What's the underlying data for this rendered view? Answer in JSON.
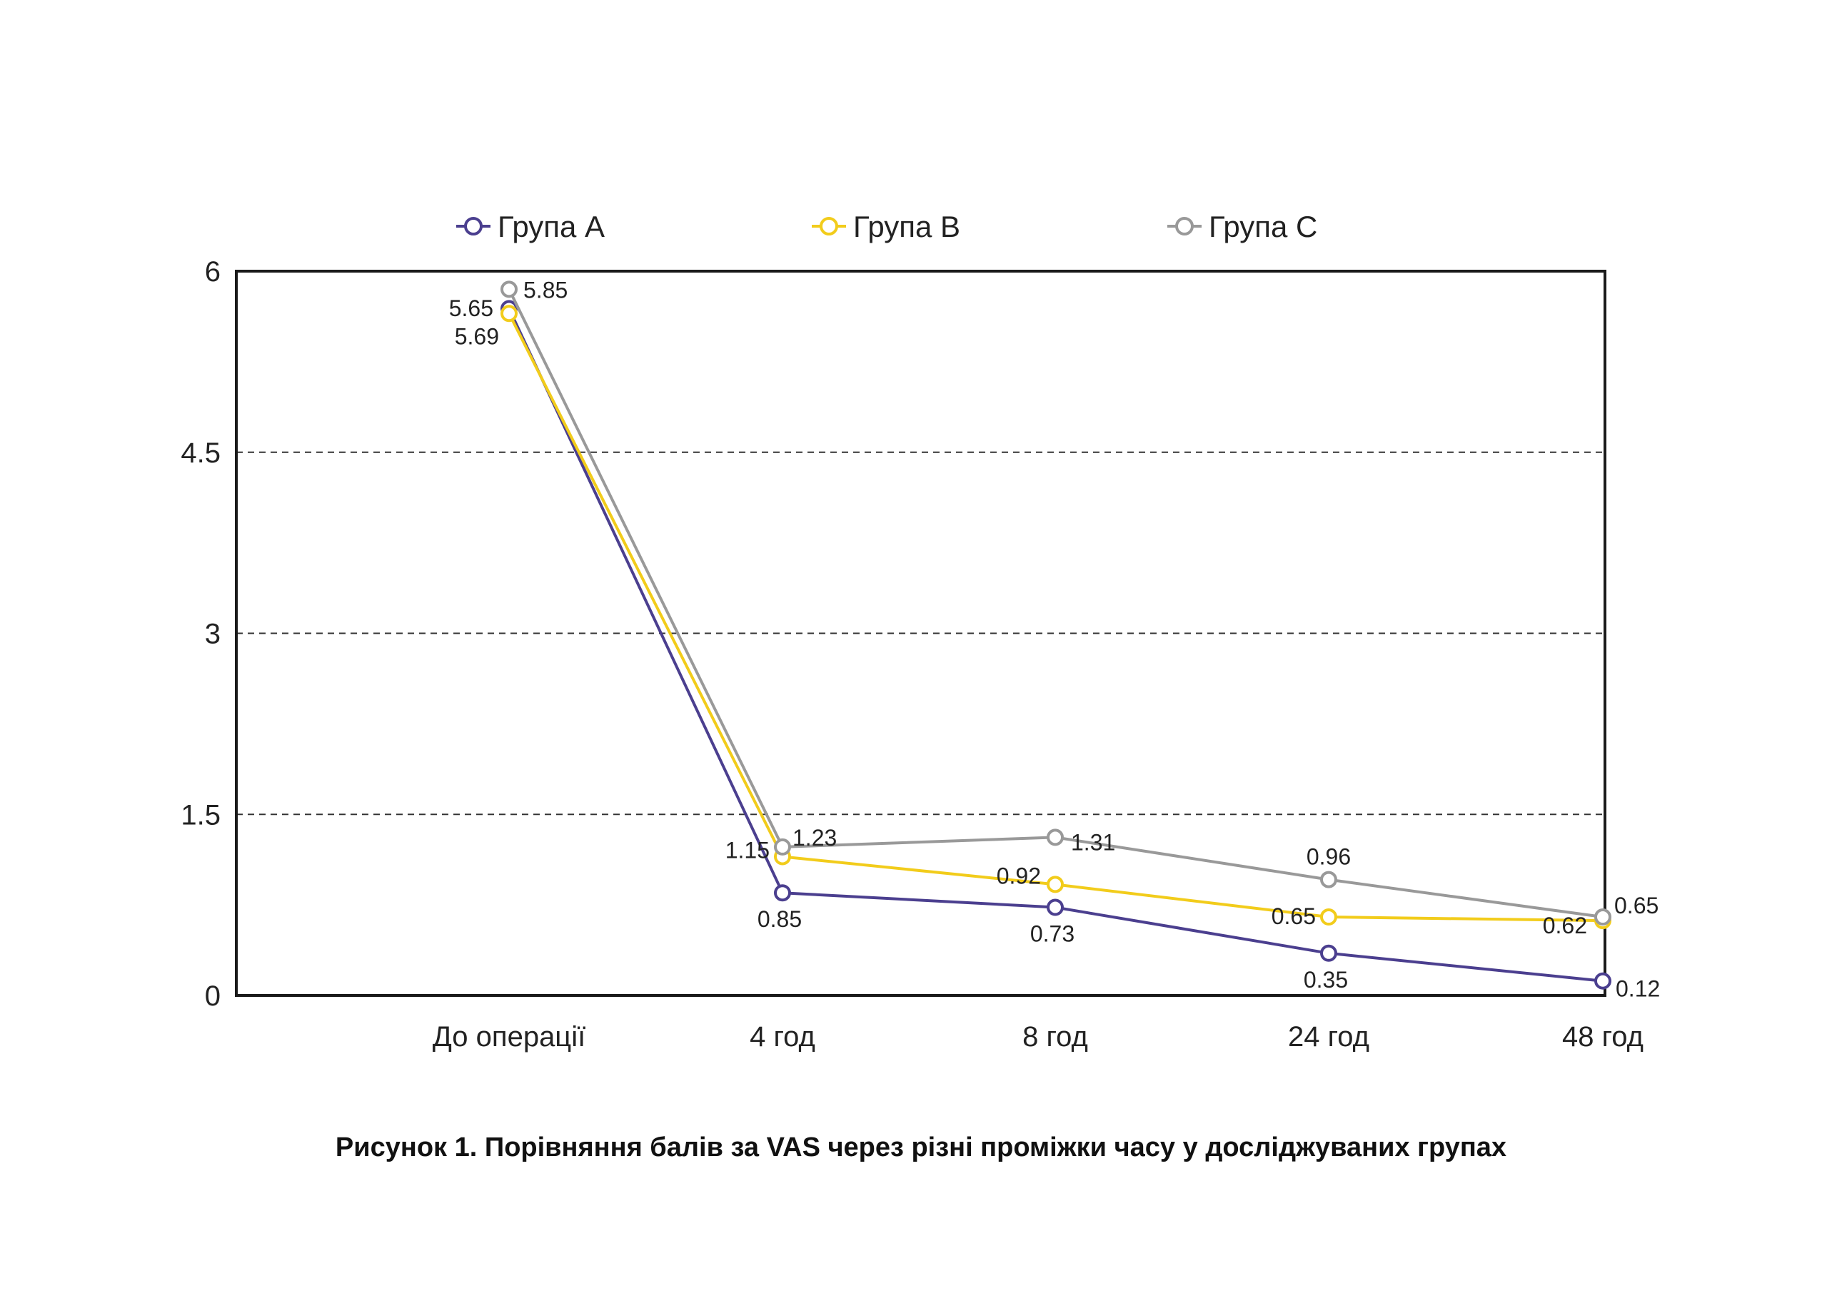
{
  "chart_data": {
    "type": "line",
    "title": "",
    "xlabel": "",
    "ylabel": "",
    "categories": [
      "До операції",
      "4 год",
      "8 год",
      "24 год",
      "48 год"
    ],
    "y_ticks": [
      "0",
      "1.5",
      "3",
      "4.5",
      "6"
    ],
    "ylim": [
      0,
      6
    ],
    "grid": "horizontal dashed",
    "legend_position": "top",
    "series": [
      {
        "name": "Група А",
        "color": "#4B3F8F",
        "values": [
          5.69,
          0.85,
          0.73,
          0.35,
          0.12
        ],
        "labels": [
          "5.69",
          "0.85",
          "0.73",
          "0.35",
          "0.12"
        ]
      },
      {
        "name": "Група В",
        "color": "#F2CC1B",
        "values": [
          5.65,
          1.15,
          0.92,
          0.65,
          0.62
        ],
        "labels": [
          "5.65",
          "1.15",
          "0.92",
          "0.65",
          "0.62"
        ]
      },
      {
        "name": "Група С",
        "color": "#999999",
        "values": [
          5.85,
          1.23,
          1.31,
          0.96,
          0.65
        ],
        "labels": [
          "5.85",
          "1.23",
          "1.31",
          "0.96",
          "0.65"
        ]
      }
    ]
  },
  "caption": "Рисунок 1. Порівняння балів за VAS через різні проміжки часу у досліджуваних групах"
}
